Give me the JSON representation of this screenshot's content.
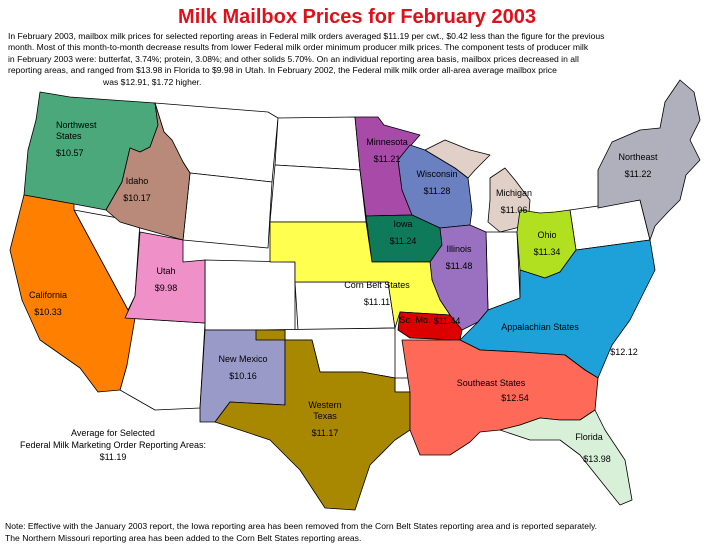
{
  "title": "Milk Mailbox Prices for February 2003",
  "intro_lines": [
    "In February 2003, mailbox milk prices for selected reporting areas in Federal milk orders averaged $11.19 per cwt., $0.42 less than the figure for the previous",
    "month.  Most of this month-to-month decrease results from lower Federal milk order minimum producer milk prices. The component tests of producer milk",
    "in February 2003 were: butterfat, 3.74%; protein, 3.08%; and other solids 5.70%. On an individual reporting area basis, mailbox prices decreased in all",
    "reporting areas, and ranged from $13.98 in Florida to $9.98 in Utah.  In February 2002, the Federal milk milk order all-area average mailbox price",
    "was $12.91, $1.72 higher."
  ],
  "areas": [
    {
      "id": "northwest",
      "name_lines": [
        "Northwest",
        "States"
      ],
      "price": "$10.57",
      "color": "#4aa87a"
    },
    {
      "id": "idaho",
      "name_lines": [
        "Idaho"
      ],
      "price": "$10.17",
      "color": "#b98a7a"
    },
    {
      "id": "california",
      "name_lines": [
        "California"
      ],
      "price": "$10.33",
      "color": "#ff7f00"
    },
    {
      "id": "utah",
      "name_lines": [
        "Utah"
      ],
      "price": "$9.98",
      "color": "#f090c8"
    },
    {
      "id": "new-mexico",
      "name_lines": [
        "New Mexico"
      ],
      "price": "$10.16",
      "color": "#9a9ac8"
    },
    {
      "id": "western-texas",
      "name_lines": [
        "Western",
        "Texas"
      ],
      "price": "$11.17",
      "color": "#a88800"
    },
    {
      "id": "minnesota",
      "name_lines": [
        "Minnesota"
      ],
      "price": "$11.21",
      "color": "#a84aa8"
    },
    {
      "id": "wisconsin",
      "name_lines": [
        "Wisconsin"
      ],
      "price": "$11.28",
      "color": "#6a80c0"
    },
    {
      "id": "iowa",
      "name_lines": [
        "Iowa"
      ],
      "price": "$11.24",
      "color": "#0f7a5a"
    },
    {
      "id": "illinois",
      "name_lines": [
        "Illinois"
      ],
      "price": "$11.48",
      "color": "#9a70c0"
    },
    {
      "id": "michigan",
      "name_lines": [
        "Michigan"
      ],
      "price": "$11.06",
      "color": "#e0d0c8"
    },
    {
      "id": "ohio",
      "name_lines": [
        "Ohio"
      ],
      "price": "$11.34",
      "color": "#b0e020"
    },
    {
      "id": "northeast",
      "name_lines": [
        "Northeast"
      ],
      "price": "$11.22",
      "color": "#b0b0bc"
    },
    {
      "id": "corn-belt",
      "name_lines": [
        "Corn Belt States"
      ],
      "price": "$11.11",
      "color": "#ffff50"
    },
    {
      "id": "so-mo",
      "name_lines": [
        "So. Mo."
      ],
      "price": "$11.44",
      "color": "#dd0000"
    },
    {
      "id": "appalachian",
      "name_lines": [
        "Appalachian States"
      ],
      "price": "$12.12",
      "color": "#1ea0d8"
    },
    {
      "id": "southeast",
      "name_lines": [
        "Southeast States"
      ],
      "price": "$12.54",
      "color": "#ff6a58"
    },
    {
      "id": "florida",
      "name_lines": [
        "Florida"
      ],
      "price": "$13.98",
      "color": "#d8f0d8"
    }
  ],
  "average": {
    "lines": [
      "Average for Selected",
      "Federal Milk Marketing Order Reporting Areas:"
    ],
    "price": "$11.19"
  },
  "note_lines": [
    "Note: Effective with the January 2003 report, the Iowa reporting area has been removed from the Corn Belt States reporting area and is reported separately.",
    "The Northern Missouri reporting area has been added to the Corn Belt States reporting areas."
  ]
}
